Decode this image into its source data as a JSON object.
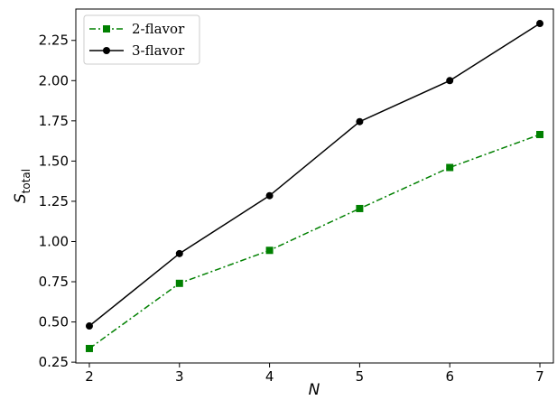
{
  "chart_data": {
    "type": "line",
    "title": "",
    "xlabel": "N",
    "ylabel_main": "S",
    "ylabel_sub": "total",
    "x": [
      2,
      3,
      4,
      5,
      6,
      7
    ],
    "xlim": [
      1.85,
      7.15
    ],
    "ylim": [
      0.245,
      2.445
    ],
    "xticks": [
      "2",
      "3",
      "4",
      "5",
      "6",
      "7"
    ],
    "yticks": [
      "0.25",
      "0.50",
      "0.75",
      "1.00",
      "1.25",
      "1.50",
      "1.75",
      "2.00",
      "2.25"
    ],
    "grid": false,
    "legend_position": "top-left",
    "series": [
      {
        "name": "2-flavor",
        "values": [
          0.335,
          0.74,
          0.945,
          1.205,
          1.46,
          1.665
        ],
        "color": "#008000",
        "marker": "square",
        "line_style": "dash-dot"
      },
      {
        "name": "3-flavor",
        "values": [
          0.475,
          0.925,
          1.285,
          1.745,
          2.0,
          2.355
        ],
        "color": "#000000",
        "marker": "circle",
        "line_style": "solid"
      }
    ]
  }
}
